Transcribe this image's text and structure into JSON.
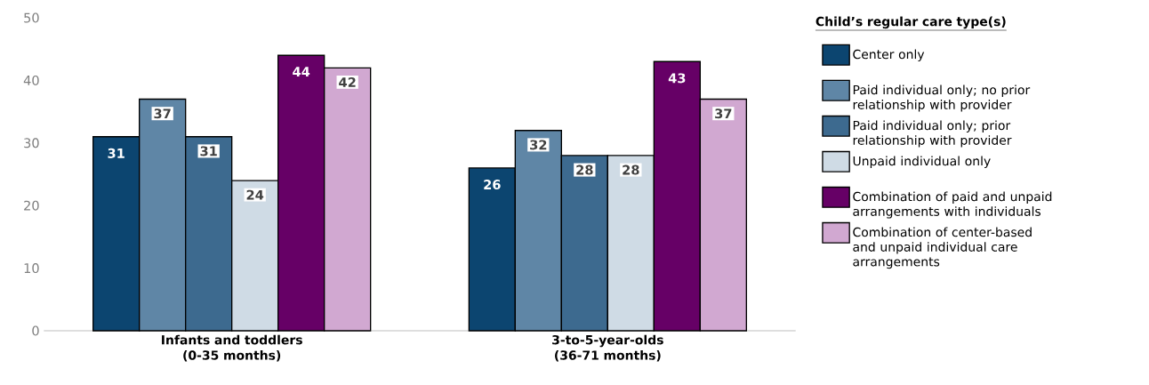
{
  "chart_data": {
    "type": "bar",
    "categories": [
      "Infants and toddlers (0-35 months)",
      "3-to-5-year-olds (36-71 months)"
    ],
    "series": [
      {
        "name": "Center only",
        "color": "#0c4570",
        "values": [
          31,
          26
        ]
      },
      {
        "name": "Paid individual only; no prior relationship with provider",
        "color": "#5f86a6",
        "values": [
          37,
          32
        ]
      },
      {
        "name": "Paid individual only;  prior relationship with provider",
        "color": "#3d6a8f",
        "values": [
          31,
          28
        ]
      },
      {
        "name": "Unpaid individual only",
        "color": "#cfdbe5",
        "values": [
          24,
          28
        ]
      },
      {
        "name": "Combination of paid and unpaid arrangements with individuals",
        "color": "#660066",
        "values": [
          44,
          43
        ]
      },
      {
        "name": "Combination of center-based and unpaid individual care arrangements",
        "color": "#d1a8d1",
        "values": [
          42,
          37
        ]
      }
    ],
    "legend_title": "Child’s regular care type(s)",
    "legend": "right",
    "ylim": [
      0,
      50
    ],
    "yticks": [
      0,
      10,
      20,
      30,
      40,
      50
    ],
    "data_labels": true,
    "grid": false
  }
}
